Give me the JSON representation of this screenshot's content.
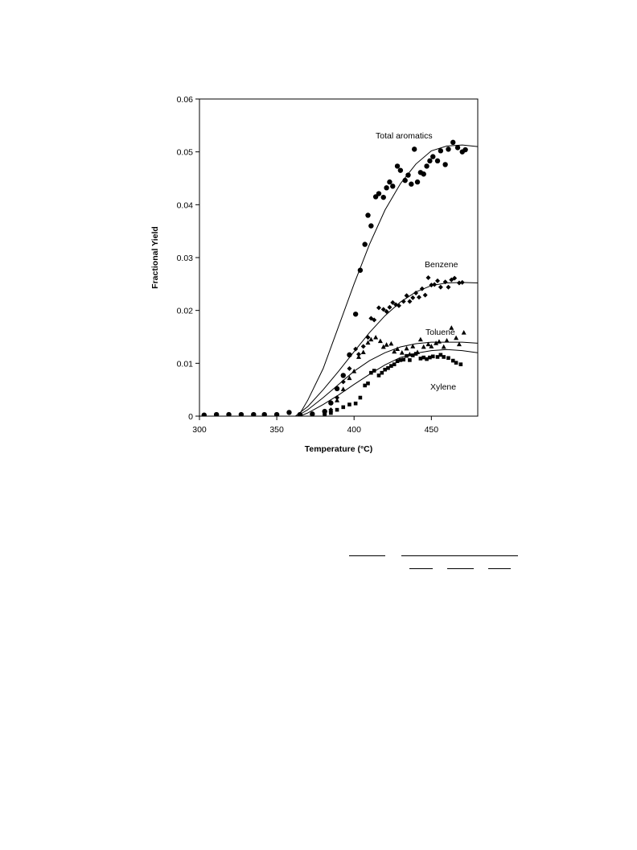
{
  "chart_data": {
    "type": "scatter",
    "xlabel": "Temperature (°C)",
    "ylabel": "Fractional  Yield",
    "xlim": [
      300,
      480
    ],
    "ylim": [
      0,
      0.06
    ],
    "x_ticks": [
      300,
      350,
      400,
      450
    ],
    "y_ticks": [
      0,
      0.01,
      0.02,
      0.03,
      0.04,
      0.05,
      0.06
    ],
    "x_tick_labels": [
      "300",
      "350",
      "400",
      "450"
    ],
    "y_tick_labels": [
      "0",
      "0.01",
      "0.02",
      "0.03",
      "0.04",
      "0.05",
      "0.06"
    ],
    "grid": false,
    "series": [
      {
        "name": "Total aromatics",
        "marker": "circle",
        "points": [
          [
            303,
            0.0002
          ],
          [
            311,
            0.0003
          ],
          [
            319,
            0.0003
          ],
          [
            327,
            0.0003
          ],
          [
            335,
            0.0003
          ],
          [
            342,
            0.0003
          ],
          [
            350,
            0.0003
          ],
          [
            358,
            0.0007
          ],
          [
            365,
            0.0003
          ],
          [
            373,
            0.0004
          ],
          [
            381,
            0.0009
          ],
          [
            385,
            0.0025
          ],
          [
            389,
            0.0052
          ],
          [
            393,
            0.0077
          ],
          [
            397,
            0.0116
          ],
          [
            401,
            0.0193
          ],
          [
            404,
            0.0276
          ],
          [
            407,
            0.0325
          ],
          [
            409,
            0.038
          ],
          [
            411,
            0.036
          ],
          [
            414,
            0.0415
          ],
          [
            416,
            0.0421
          ],
          [
            419,
            0.0414
          ],
          [
            421,
            0.0432
          ],
          [
            423,
            0.0443
          ],
          [
            425,
            0.0435
          ],
          [
            428,
            0.0473
          ],
          [
            430,
            0.0465
          ],
          [
            433,
            0.0446
          ],
          [
            435,
            0.0456
          ],
          [
            437,
            0.0439
          ],
          [
            439,
            0.0505
          ],
          [
            441,
            0.0443
          ],
          [
            443,
            0.0461
          ],
          [
            445,
            0.0458
          ],
          [
            447,
            0.0473
          ],
          [
            449,
            0.0483
          ],
          [
            451,
            0.0491
          ],
          [
            454,
            0.0483
          ],
          [
            456,
            0.0502
          ],
          [
            459,
            0.0476
          ],
          [
            461,
            0.0505
          ],
          [
            464,
            0.0518
          ],
          [
            467,
            0.0508
          ],
          [
            470,
            0.05
          ],
          [
            472,
            0.0504
          ]
        ],
        "fit": [
          [
            300,
            0
          ],
          [
            364,
            0
          ],
          [
            370,
            0.003
          ],
          [
            380,
            0.009
          ],
          [
            390,
            0.017
          ],
          [
            400,
            0.025
          ],
          [
            410,
            0.0325
          ],
          [
            420,
            0.039
          ],
          [
            430,
            0.044
          ],
          [
            440,
            0.0477
          ],
          [
            450,
            0.0502
          ],
          [
            460,
            0.0511
          ],
          [
            470,
            0.0513
          ],
          [
            480,
            0.051
          ]
        ]
      },
      {
        "name": "Benzene",
        "marker": "diamond",
        "points": [
          [
            365,
            0.0003
          ],
          [
            373,
            0.0003
          ],
          [
            381,
            0.0004
          ],
          [
            385,
            0.0012
          ],
          [
            389,
            0.0035
          ],
          [
            393,
            0.0065
          ],
          [
            397,
            0.009
          ],
          [
            401,
            0.0127
          ],
          [
            403,
            0.0117
          ],
          [
            406,
            0.0132
          ],
          [
            409,
            0.0149
          ],
          [
            411,
            0.0185
          ],
          [
            413,
            0.0182
          ],
          [
            416,
            0.0205
          ],
          [
            419,
            0.0202
          ],
          [
            421,
            0.0198
          ],
          [
            423,
            0.0206
          ],
          [
            425,
            0.0215
          ],
          [
            427,
            0.0211
          ],
          [
            429,
            0.0209
          ],
          [
            432,
            0.0217
          ],
          [
            434,
            0.0228
          ],
          [
            436,
            0.0217
          ],
          [
            438,
            0.0224
          ],
          [
            440,
            0.0233
          ],
          [
            442,
            0.0225
          ],
          [
            444,
            0.0241
          ],
          [
            446,
            0.0229
          ],
          [
            448,
            0.0262
          ],
          [
            450,
            0.0248
          ],
          [
            452,
            0.0249
          ],
          [
            454,
            0.0256
          ],
          [
            456,
            0.0244
          ],
          [
            459,
            0.0254
          ],
          [
            461,
            0.0244
          ],
          [
            463,
            0.0258
          ],
          [
            465,
            0.0261
          ],
          [
            468,
            0.0252
          ],
          [
            470,
            0.0253
          ]
        ],
        "fit": [
          [
            300,
            0
          ],
          [
            362,
            0
          ],
          [
            370,
            0.0018
          ],
          [
            380,
            0.005
          ],
          [
            390,
            0.0085
          ],
          [
            400,
            0.0122
          ],
          [
            410,
            0.0158
          ],
          [
            420,
            0.019
          ],
          [
            430,
            0.0216
          ],
          [
            440,
            0.0235
          ],
          [
            450,
            0.0247
          ],
          [
            460,
            0.0252
          ],
          [
            470,
            0.0253
          ],
          [
            480,
            0.0252
          ]
        ]
      },
      {
        "name": "Toluene",
        "marker": "triangle",
        "points": [
          [
            381,
            0.0003
          ],
          [
            385,
            0.0011
          ],
          [
            389,
            0.003
          ],
          [
            393,
            0.0051
          ],
          [
            397,
            0.0072
          ],
          [
            400,
            0.0085
          ],
          [
            403,
            0.0112
          ],
          [
            406,
            0.0121
          ],
          [
            409,
            0.0139
          ],
          [
            411,
            0.0145
          ],
          [
            414,
            0.0149
          ],
          [
            417,
            0.0142
          ],
          [
            419,
            0.0131
          ],
          [
            421,
            0.0135
          ],
          [
            424,
            0.0137
          ],
          [
            426,
            0.0122
          ],
          [
            428,
            0.0127
          ],
          [
            431,
            0.012
          ],
          [
            434,
            0.0128
          ],
          [
            436,
            0.0117
          ],
          [
            438,
            0.0132
          ],
          [
            441,
            0.0121
          ],
          [
            443,
            0.0145
          ],
          [
            445,
            0.0131
          ],
          [
            448,
            0.0136
          ],
          [
            450,
            0.0132
          ],
          [
            453,
            0.0138
          ],
          [
            455,
            0.0141
          ],
          [
            458,
            0.0131
          ],
          [
            460,
            0.0143
          ],
          [
            463,
            0.0167
          ],
          [
            466,
            0.0148
          ],
          [
            468,
            0.0136
          ],
          [
            471,
            0.0158
          ]
        ],
        "fit": [
          [
            300,
            0
          ],
          [
            363,
            0
          ],
          [
            370,
            0.0012
          ],
          [
            380,
            0.0035
          ],
          [
            390,
            0.006
          ],
          [
            400,
            0.0085
          ],
          [
            410,
            0.0105
          ],
          [
            420,
            0.012
          ],
          [
            430,
            0.0131
          ],
          [
            440,
            0.0137
          ],
          [
            450,
            0.014
          ],
          [
            460,
            0.014
          ],
          [
            470,
            0.014
          ],
          [
            480,
            0.0138
          ]
        ]
      },
      {
        "name": "Xylene",
        "marker": "square",
        "points": [
          [
            381,
            0.0003
          ],
          [
            385,
            0.0006
          ],
          [
            389,
            0.0012
          ],
          [
            393,
            0.0017
          ],
          [
            397,
            0.0022
          ],
          [
            401,
            0.0024
          ],
          [
            404,
            0.0035
          ],
          [
            407,
            0.0058
          ],
          [
            409,
            0.0062
          ],
          [
            411,
            0.0082
          ],
          [
            413,
            0.0086
          ],
          [
            416,
            0.0077
          ],
          [
            418,
            0.0082
          ],
          [
            420,
            0.0088
          ],
          [
            422,
            0.0091
          ],
          [
            424,
            0.0095
          ],
          [
            426,
            0.0098
          ],
          [
            428,
            0.0104
          ],
          [
            430,
            0.0106
          ],
          [
            432,
            0.0107
          ],
          [
            434,
            0.0114
          ],
          [
            436,
            0.0106
          ],
          [
            438,
            0.0115
          ],
          [
            440,
            0.0118
          ],
          [
            443,
            0.0109
          ],
          [
            445,
            0.0111
          ],
          [
            447,
            0.0108
          ],
          [
            449,
            0.0111
          ],
          [
            451,
            0.0113
          ],
          [
            454,
            0.0112
          ],
          [
            456,
            0.0116
          ],
          [
            458,
            0.0112
          ],
          [
            461,
            0.011
          ],
          [
            464,
            0.0105
          ],
          [
            466,
            0.0101
          ],
          [
            469,
            0.0098
          ]
        ],
        "fit": [
          [
            300,
            0
          ],
          [
            365,
            0
          ],
          [
            370,
            0.0006
          ],
          [
            380,
            0.0022
          ],
          [
            390,
            0.004
          ],
          [
            400,
            0.006
          ],
          [
            410,
            0.0079
          ],
          [
            420,
            0.0097
          ],
          [
            430,
            0.0111
          ],
          [
            440,
            0.0119
          ],
          [
            450,
            0.0124
          ],
          [
            460,
            0.0126
          ],
          [
            470,
            0.0124
          ],
          [
            480,
            0.012
          ]
        ]
      }
    ]
  }
}
